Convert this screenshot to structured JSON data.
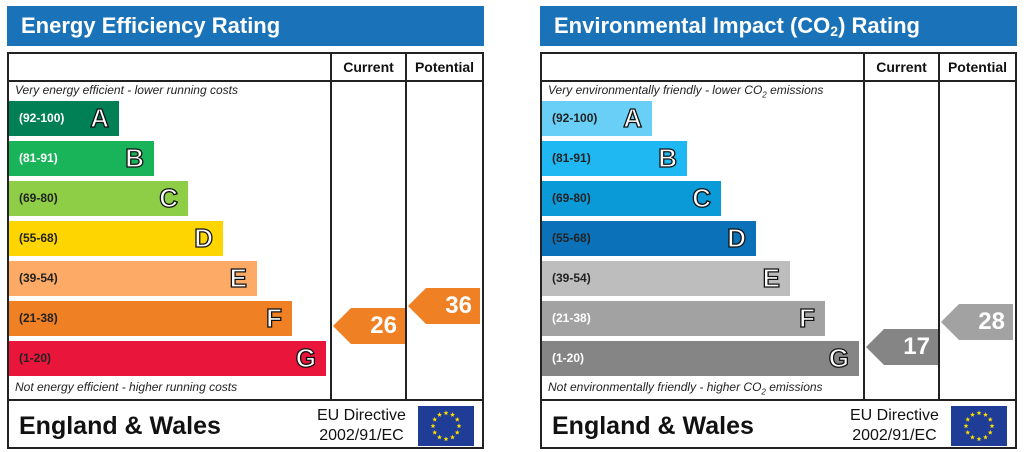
{
  "chart_data": [
    {
      "type": "bar",
      "title": "Energy Efficiency Rating",
      "columns": [
        "Current",
        "Potential"
      ],
      "top_caption": "Very energy efficient - lower running costs",
      "bottom_caption": "Not energy efficient - higher running costs",
      "bands": [
        {
          "range": "(92-100)",
          "letter": "A",
          "color": "#008054",
          "range_color": "#ffffff"
        },
        {
          "range": "(81-91)",
          "letter": "B",
          "color": "#19b459",
          "range_color": "#ffffff"
        },
        {
          "range": "(69-80)",
          "letter": "C",
          "color": "#8dce46",
          "range_color": "#222222"
        },
        {
          "range": "(55-68)",
          "letter": "D",
          "color": "#ffd500",
          "range_color": "#222222"
        },
        {
          "range": "(39-54)",
          "letter": "E",
          "color": "#fcaa65",
          "range_color": "#222222"
        },
        {
          "range": "(21-38)",
          "letter": "F",
          "color": "#ef8023",
          "range_color": "#222222"
        },
        {
          "range": "(1-20)",
          "letter": "G",
          "color": "#e9153b",
          "range_color": "#222222"
        }
      ],
      "current": {
        "value": 26,
        "band": "F",
        "color": "#ef8023"
      },
      "potential": {
        "value": 36,
        "band": "F",
        "color": "#ef8023"
      },
      "footer_region": "England & Wales",
      "footer_directive_line1": "EU Directive",
      "footer_directive_line2": "2002/91/EC"
    },
    {
      "type": "bar",
      "title_prefix": "Environmental Impact (CO",
      "title_sub": "2",
      "title_suffix": ") Rating",
      "columns": [
        "Current",
        "Potential"
      ],
      "top_caption_prefix": "Very environmentally friendly - lower CO",
      "top_caption_sub": "2",
      "top_caption_suffix": " emissions",
      "bottom_caption_prefix": "Not environmentally friendly - higher CO",
      "bottom_caption_sub": "2",
      "bottom_caption_suffix": " emissions",
      "bands": [
        {
          "range": "(92-100)",
          "letter": "A",
          "color": "#6acff6",
          "range_color": "#222222"
        },
        {
          "range": "(81-91)",
          "letter": "B",
          "color": "#1fb8f2",
          "range_color": "#222222"
        },
        {
          "range": "(69-80)",
          "letter": "C",
          "color": "#0b9ad8",
          "range_color": "#222222"
        },
        {
          "range": "(55-68)",
          "letter": "D",
          "color": "#0b72b9",
          "range_color": "#222222"
        },
        {
          "range": "(39-54)",
          "letter": "E",
          "color": "#bdbdbd",
          "range_color": "#222222"
        },
        {
          "range": "(21-38)",
          "letter": "F",
          "color": "#a2a2a2",
          "range_color": "#ffffff"
        },
        {
          "range": "(1-20)",
          "letter": "G",
          "color": "#858585",
          "range_color": "#ffffff"
        }
      ],
      "current": {
        "value": 17,
        "band": "G",
        "color": "#858585"
      },
      "potential": {
        "value": 28,
        "band": "F",
        "color": "#a2a2a2"
      },
      "footer_region": "England & Wales",
      "footer_directive_line1": "EU Directive",
      "footer_directive_line2": "2002/91/EC"
    }
  ],
  "icons": {
    "eu_flag": "eu-flag-icon"
  }
}
